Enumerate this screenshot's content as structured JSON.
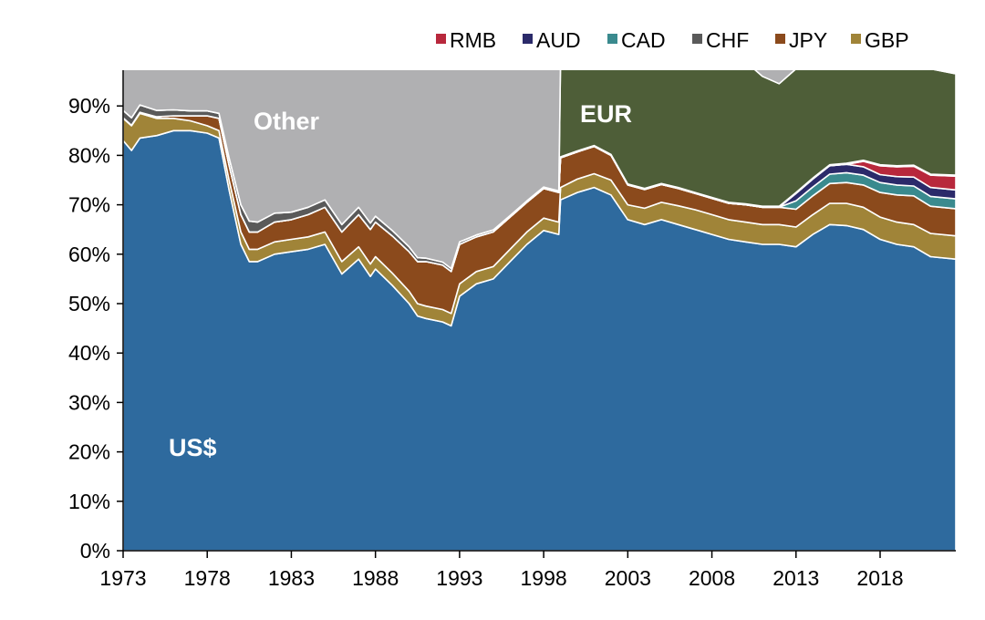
{
  "chart_data": {
    "type": "area",
    "stacked": true,
    "title": "",
    "xlabel": "",
    "ylabel": "",
    "ylim": [
      0,
      97
    ],
    "xlim": [
      1973,
      2022.5
    ],
    "grid": false,
    "legend_placement": "top-right",
    "x_ticks": [
      "1973",
      "1978",
      "1983",
      "1988",
      "1993",
      "1998",
      "2003",
      "2008",
      "2013",
      "2018"
    ],
    "y_ticks": [
      "0%",
      "10%",
      "20%",
      "30%",
      "40%",
      "50%",
      "60%",
      "70%",
      "80%",
      "90%"
    ],
    "legend": [
      "RMB",
      "AUD",
      "CAD",
      "CHF",
      "JPY",
      "GBP"
    ],
    "area_labels": {
      "usd": "US$",
      "other": "Other",
      "eur": "EUR"
    },
    "x": [
      1973,
      1973.5,
      1974,
      1975,
      1976,
      1977,
      1978,
      1978.7,
      1979.3,
      1980,
      1980.5,
      1981,
      1982,
      1983,
      1984,
      1985,
      1986,
      1987,
      1987.7,
      1988,
      1989,
      1990,
      1990.5,
      1991,
      1992,
      1992.5,
      1993,
      1994,
      1995,
      1996,
      1997,
      1998,
      1998.9,
      1999,
      2000,
      2001,
      2002,
      2003,
      2004,
      2005,
      2006,
      2007,
      2008,
      2009,
      2010,
      2011,
      2012,
      2013,
      2014,
      2015,
      2016,
      2017,
      2018,
      2019,
      2020,
      2021,
      2022.5
    ],
    "series": [
      {
        "name": "US$",
        "color": "#2e6a9e",
        "values": [
          83,
          81,
          83.5,
          84,
          85,
          85,
          84.5,
          83.5,
          73,
          62,
          58.5,
          58.5,
          60,
          60.5,
          61,
          62,
          56,
          59,
          55.5,
          57,
          53.7,
          50,
          47.5,
          47,
          46.3,
          45.5,
          51.5,
          54,
          55,
          58.5,
          62,
          64.8,
          64,
          71,
          72.5,
          73.5,
          72,
          67,
          66,
          67,
          66,
          65,
          64,
          63,
          62.5,
          62,
          62,
          61.5,
          64,
          66,
          65.8,
          65,
          63,
          62,
          61.5,
          59.5,
          59
        ]
      },
      {
        "name": "GBP",
        "color": "#a08438",
        "values": [
          4.5,
          5,
          5,
          3.5,
          2.5,
          2,
          1.5,
          1.5,
          2,
          2.5,
          2.5,
          2.5,
          2.5,
          2.5,
          2.5,
          2.5,
          2.5,
          2.5,
          2.5,
          2.5,
          2.5,
          2.5,
          2.5,
          2.5,
          2.5,
          2.5,
          2.5,
          2.5,
          2.5,
          2.5,
          2.5,
          2.5,
          2.5,
          2.5,
          2.7,
          2.8,
          3,
          3,
          3.3,
          3.5,
          3.8,
          4,
          4,
          4,
          4,
          4,
          4,
          4,
          4,
          4.3,
          4.5,
          4.5,
          4.5,
          4.5,
          4.5,
          4.7,
          4.7
        ]
      },
      {
        "name": "JPY",
        "color": "#8b4a1c",
        "values": [
          0.1,
          0.1,
          0.2,
          0.3,
          0.5,
          1,
          2,
          2.5,
          3,
          3.5,
          3.5,
          3.5,
          4,
          4,
          4.5,
          5,
          6,
          6.5,
          7,
          7,
          7.5,
          8,
          8.5,
          9,
          9,
          8.5,
          8,
          7,
          7,
          6.5,
          6,
          6,
          6,
          6,
          5.5,
          5.5,
          5,
          4,
          3.8,
          3.6,
          3.5,
          3.3,
          3.3,
          3.3,
          3.5,
          3.5,
          3.5,
          3.6,
          3.8,
          4,
          4.2,
          4.5,
          5,
          5.5,
          5.8,
          5.5,
          5.5
        ]
      },
      {
        "name": "CAD",
        "color": "#3a8a8e",
        "values": [
          0,
          0,
          0,
          0,
          0,
          0,
          0,
          0,
          0,
          0,
          0,
          0,
          0,
          0,
          0,
          0,
          0,
          0,
          0,
          0,
          0,
          0,
          0,
          0,
          0,
          0,
          0,
          0,
          0,
          0,
          0,
          0,
          0,
          0,
          0,
          0,
          0,
          0,
          0,
          0,
          0,
          0,
          0,
          0,
          0,
          0,
          0,
          1.7,
          1.8,
          1.9,
          2,
          2,
          2,
          2,
          2,
          2,
          2
        ]
      },
      {
        "name": "AUD",
        "color": "#2b2a6a",
        "values": [
          0,
          0,
          0,
          0,
          0,
          0,
          0,
          0,
          0,
          0,
          0,
          0,
          0,
          0,
          0,
          0,
          0,
          0,
          0,
          0,
          0,
          0,
          0,
          0,
          0,
          0,
          0,
          0,
          0,
          0,
          0,
          0,
          0,
          0,
          0,
          0,
          0,
          0,
          0,
          0,
          0,
          0,
          0,
          0,
          0,
          0,
          0,
          1.5,
          1.6,
          1.7,
          1.7,
          1.7,
          1.6,
          1.7,
          1.8,
          1.8,
          1.8
        ]
      },
      {
        "name": "RMB",
        "color": "#b8283c",
        "values": [
          0,
          0,
          0,
          0,
          0,
          0,
          0,
          0,
          0,
          0,
          0,
          0,
          0,
          0,
          0,
          0,
          0,
          0,
          0,
          0,
          0,
          0,
          0,
          0,
          0,
          0,
          0,
          0,
          0,
          0,
          0,
          0,
          0,
          0,
          0,
          0,
          0,
          0,
          0,
          0,
          0,
          0,
          0,
          0,
          0,
          0,
          0,
          0,
          0,
          0,
          0,
          1.1,
          1.8,
          2,
          2.2,
          2.5,
          2.8
        ]
      },
      {
        "name": "CHF",
        "color": "#5a5a5a",
        "values": [
          1.5,
          1.5,
          1.5,
          1.3,
          1.2,
          1,
          1,
          1,
          1.5,
          2,
          2.2,
          2,
          1.8,
          1.5,
          1.5,
          1.5,
          1.5,
          1.5,
          1.3,
          1.2,
          1.1,
          1,
          0.8,
          0.7,
          0.6,
          0.6,
          0.5,
          0.4,
          0.4,
          0.3,
          0.3,
          0.3,
          0.3,
          0.2,
          0.2,
          0.2,
          0.2,
          0.2,
          0.2,
          0.2,
          0.2,
          0.2,
          0.2,
          0.2,
          0.2,
          0.2,
          0.2,
          0.2,
          0.2,
          0.2,
          0.2,
          0.2,
          0.2,
          0.2,
          0.2,
          0.2,
          0.2
        ]
      },
      {
        "name": "EUR",
        "color": "#4e5e38",
        "values": [
          0,
          0,
          0,
          0,
          0,
          0,
          0,
          0,
          0,
          0,
          0,
          0,
          0,
          0,
          0,
          0,
          0,
          0,
          0,
          0,
          0,
          0,
          0,
          0,
          0,
          0,
          0,
          0,
          0,
          0,
          0,
          0,
          0,
          19.3,
          18.1,
          17,
          18.8,
          24.8,
          25.7,
          24.7,
          25.5,
          26.5,
          27.5,
          28.5,
          28.8,
          26.3,
          24.8,
          25,
          22.1,
          19.4,
          19.1,
          18.5,
          19.4,
          19.6,
          19.5,
          21.3,
          20.5
        ]
      },
      {
        "name": "Other",
        "color": "#b0b0b2"
      }
    ]
  }
}
